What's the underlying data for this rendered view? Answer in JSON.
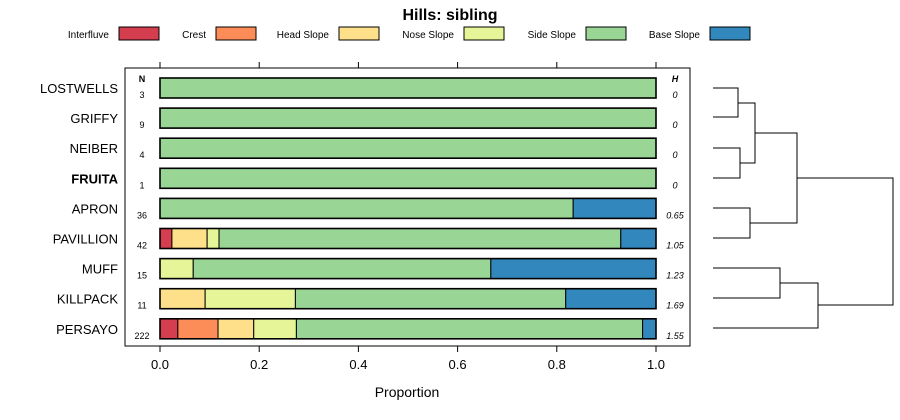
{
  "chart_data": {
    "type": "bar",
    "stacked": true,
    "orientation": "horizontal",
    "title": "Hills: sibling",
    "xlabel": "Proportion",
    "ylabel": "",
    "xlim": [
      0,
      1
    ],
    "xticks": [
      "0.0",
      "0.2",
      "0.4",
      "0.6",
      "0.8",
      "1.0"
    ],
    "n_header": "N",
    "h_header": "H",
    "legend_position": "top",
    "highlight_category": "FRUITA",
    "legend": [
      {
        "name": "Interfluve",
        "color": "#d53e4f"
      },
      {
        "name": "Crest",
        "color": "#fc8d59"
      },
      {
        "name": "Head Slope",
        "color": "#fee08b"
      },
      {
        "name": "Nose Slope",
        "color": "#e6f598"
      },
      {
        "name": "Side Slope",
        "color": "#99d594"
      },
      {
        "name": "Base Slope",
        "color": "#3288bd"
      }
    ],
    "rows": [
      {
        "label": "LOSTWELLS",
        "n": "3",
        "h": "0",
        "values": [
          0,
          0,
          0,
          0,
          1.0,
          0
        ]
      },
      {
        "label": "GRIFFY",
        "n": "9",
        "h": "0",
        "values": [
          0,
          0,
          0,
          0,
          1.0,
          0
        ]
      },
      {
        "label": "NEIBER",
        "n": "4",
        "h": "0",
        "values": [
          0,
          0,
          0,
          0,
          1.0,
          0
        ]
      },
      {
        "label": "FRUITA",
        "n": "1",
        "h": "0",
        "values": [
          0,
          0,
          0,
          0,
          1.0,
          0
        ]
      },
      {
        "label": "APRON",
        "n": "36",
        "h": "0.65",
        "values": [
          0,
          0,
          0,
          0,
          0.833,
          0.167
        ]
      },
      {
        "label": "PAVILLION",
        "n": "42",
        "h": "1.05",
        "values": [
          0.024,
          0,
          0.071,
          0.024,
          0.81,
          0.071
        ]
      },
      {
        "label": "MUFF",
        "n": "15",
        "h": "1.23",
        "values": [
          0,
          0,
          0,
          0.067,
          0.6,
          0.333
        ]
      },
      {
        "label": "KILLPACK",
        "n": "11",
        "h": "1.69",
        "values": [
          0,
          0,
          0.091,
          0.182,
          0.545,
          0.182
        ]
      },
      {
        "label": "PERSAYO",
        "n": "222",
        "h": "1.55",
        "values": [
          0.036,
          0.081,
          0.072,
          0.086,
          0.698,
          0.027
        ]
      }
    ],
    "dendrogram": "hierarchical clustering of rows (LOSTWELLS, GRIFFY, NEIBER, FRUITA | APRON, PAVILLION | MUFF, KILLPACK, PERSAYO)"
  }
}
